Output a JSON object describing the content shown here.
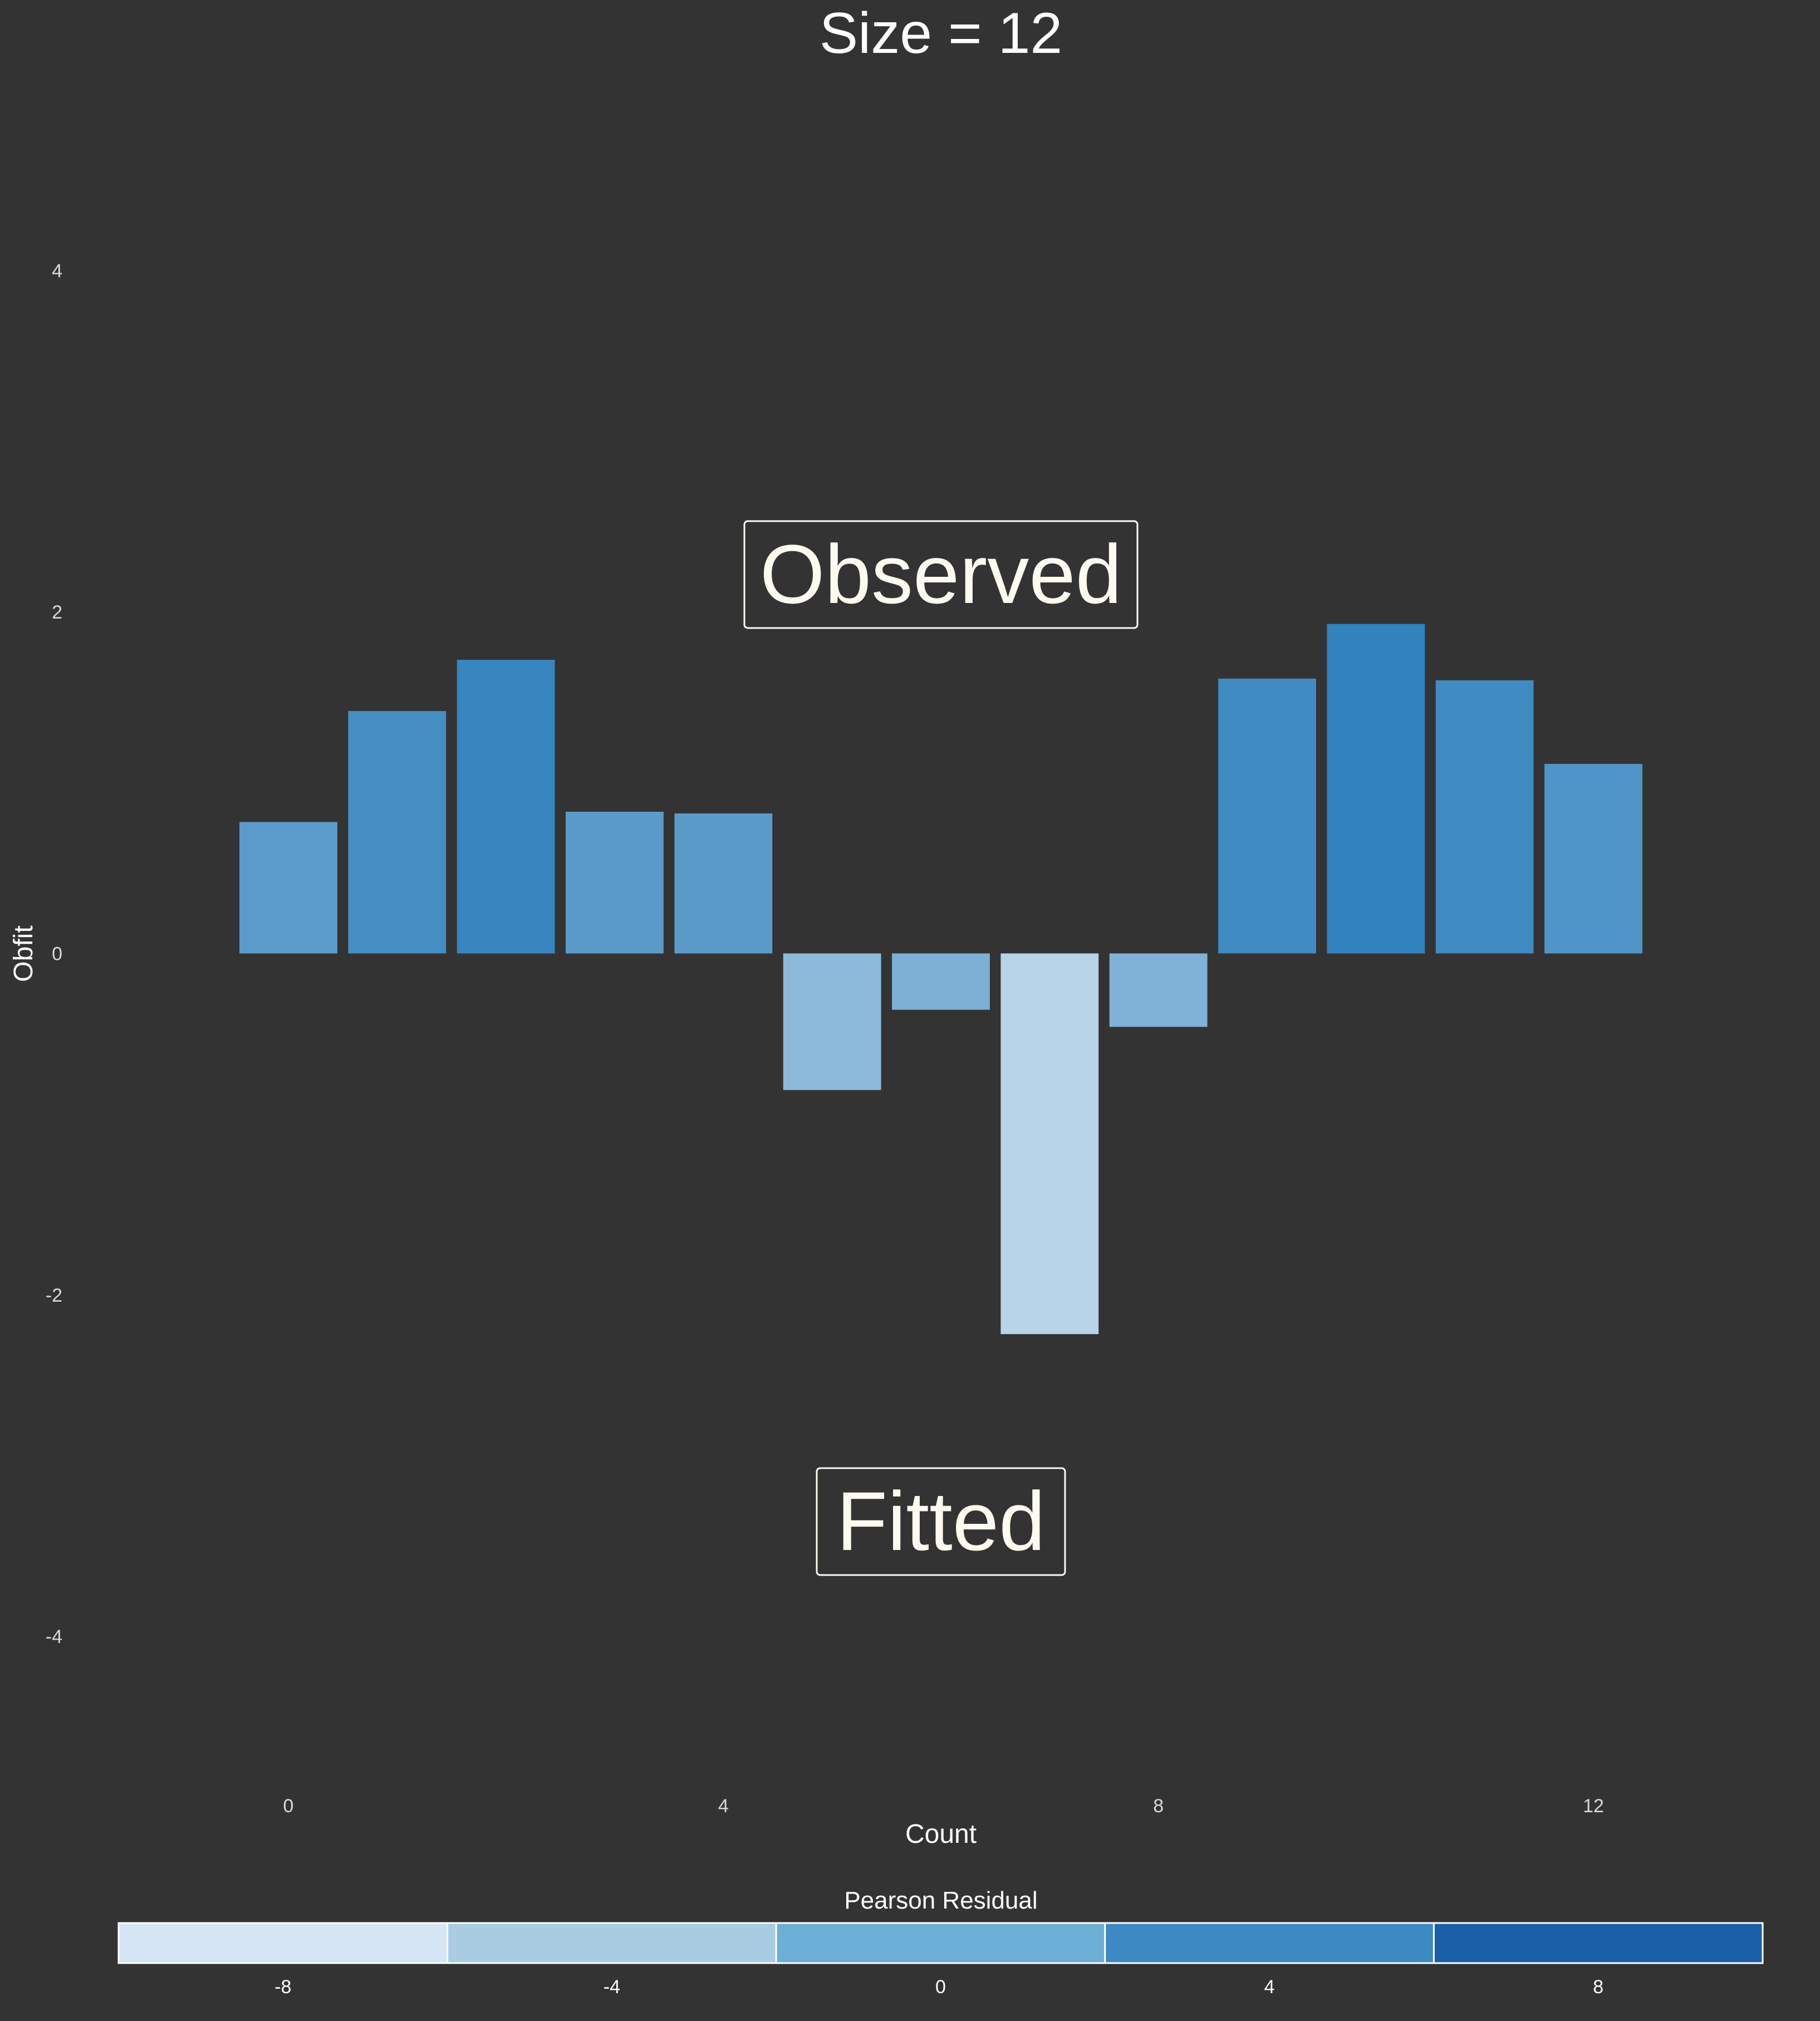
{
  "chart_data": {
    "type": "bar",
    "title": "Size = 12",
    "xlabel": "Count",
    "ylabel": "Obfit",
    "x": [
      0,
      1,
      2,
      3,
      4,
      5,
      6,
      7,
      8,
      9,
      10,
      11,
      12
    ],
    "values": [
      0.77,
      1.42,
      1.72,
      0.83,
      0.82,
      -0.8,
      -0.33,
      -2.23,
      -0.43,
      1.61,
      1.93,
      1.6,
      1.11
    ],
    "residuals": [
      1.5,
      3.0,
      3.8,
      1.6,
      1.6,
      -1.5,
      -0.5,
      -4.2,
      -0.7,
      3.3,
      4.2,
      3.3,
      2.3
    ],
    "xlim": [
      -1.5,
      13.5
    ],
    "ylim": [
      -4.9,
      4.9
    ],
    "xticks": [
      0,
      4,
      8,
      12
    ],
    "yticks": [
      4,
      2,
      0,
      -2,
      -4
    ],
    "grid": false,
    "annotations": [
      "Observed",
      "Fitted"
    ],
    "legend": {
      "title": "Pearson Residual",
      "position": "bottom",
      "bins": [
        {
          "label": "-8",
          "color": "#d6e5f5"
        },
        {
          "label": "-4",
          "color": "#a9cce3"
        },
        {
          "label": "0",
          "color": "#6baed6"
        },
        {
          "label": "4",
          "color": "#3c89c3"
        },
        {
          "label": "8",
          "color": "#1b5ea8"
        }
      ]
    },
    "colors": {
      "background": "#333333",
      "text": "#ffffff",
      "tick_text": "#d9d9d9",
      "low": "#b7d4e8",
      "high": "#3182bd"
    }
  }
}
